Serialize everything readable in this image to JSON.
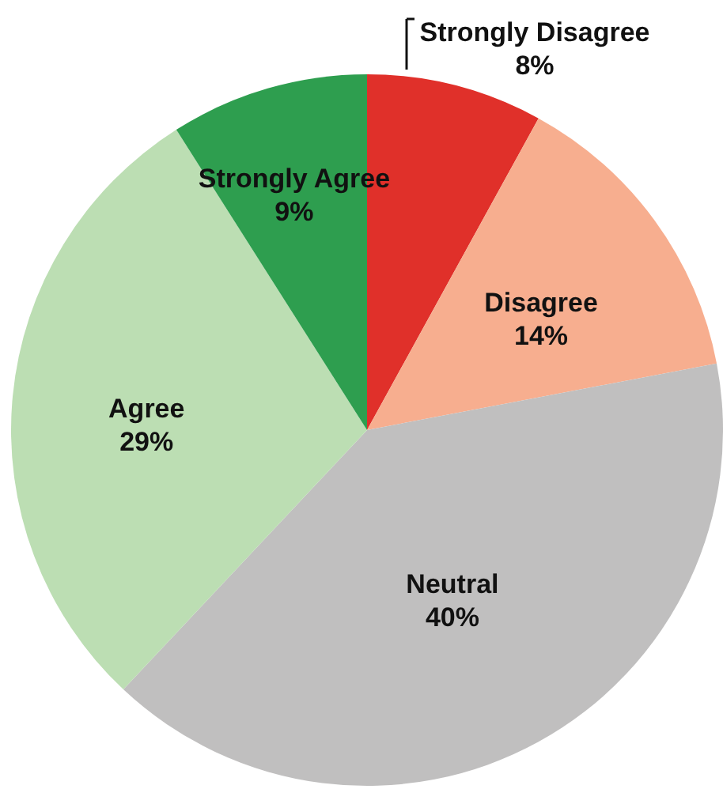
{
  "chart_data": {
    "type": "pie",
    "categories": [
      "Strongly Disagree",
      "Disagree",
      "Neutral",
      "Agree",
      "Strongly Agree"
    ],
    "values": [
      8,
      14,
      40,
      29,
      9
    ],
    "value_labels": [
      "8%",
      "14%",
      "40%",
      "29%",
      "9%"
    ],
    "colors": [
      "#e0302a",
      "#f7ae8f",
      "#c0bfbf",
      "#bcdeb3",
      "#2e9e4f"
    ]
  }
}
